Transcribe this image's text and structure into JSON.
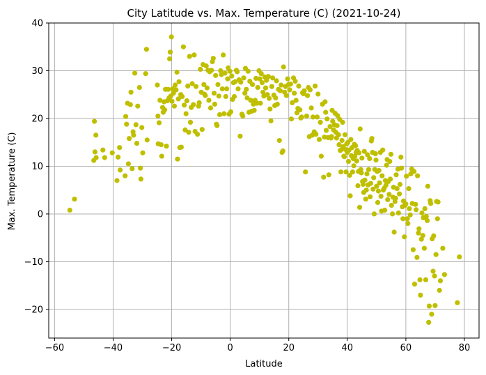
{
  "chart_data": {
    "type": "scatter",
    "title": "City Latitude vs. Max. Temperature (C) (2021-10-24)",
    "xlabel": "Latitude",
    "ylabel": "Max. Temperature (C)",
    "xlim": [
      -62,
      85
    ],
    "ylim": [
      -26,
      40
    ],
    "xticks": [
      -60,
      -40,
      -20,
      0,
      20,
      40,
      60,
      80
    ],
    "yticks": [
      -20,
      -10,
      0,
      10,
      20,
      30,
      40
    ],
    "grid": true,
    "marker_color": "#bfbf00",
    "grid_color": "#b0b0b0",
    "points": [
      [
        -54.8,
        0.8
      ],
      [
        -53.2,
        3.1
      ],
      [
        -46.6,
        11.2
      ],
      [
        -46.4,
        19.4
      ],
      [
        -46.2,
        13.0
      ],
      [
        -45.9,
        16.5
      ],
      [
        -45.8,
        11.8
      ],
      [
        -43.5,
        13.4
      ],
      [
        -42.9,
        11.8
      ],
      [
        -40.3,
        12.8
      ],
      [
        -38.7,
        7.0
      ],
      [
        -38.3,
        11.9
      ],
      [
        -37.8,
        13.9
      ],
      [
        -37.6,
        9.2
      ],
      [
        -35.9,
        8.0
      ],
      [
        -35.7,
        20.4
      ],
      [
        -35.4,
        18.8
      ],
      [
        -35.1,
        23.2
      ],
      [
        -34.8,
        10.5
      ],
      [
        -34.5,
        15.8
      ],
      [
        -34.1,
        22.9
      ],
      [
        -33.9,
        25.5
      ],
      [
        -33.5,
        9.5
      ],
      [
        -33.2,
        17.2
      ],
      [
        -33.0,
        16.5
      ],
      [
        -32.6,
        29.5
      ],
      [
        -32.2,
        18.7
      ],
      [
        -31.9,
        14.8
      ],
      [
        -31.6,
        22.6
      ],
      [
        -31.0,
        26.5
      ],
      [
        -30.7,
        9.6
      ],
      [
        -30.5,
        7.3
      ],
      [
        -30.2,
        18.1
      ],
      [
        -29.9,
        12.8
      ],
      [
        -28.9,
        29.4
      ],
      [
        -28.6,
        34.5
      ],
      [
        -28.4,
        15.5
      ],
      [
        -24.9,
        27.0
      ],
      [
        -24.7,
        20.5
      ],
      [
        -24.6,
        14.7
      ],
      [
        -24.3,
        19.1
      ],
      [
        -24.0,
        23.8
      ],
      [
        -23.6,
        14.5
      ],
      [
        -23.4,
        12.1
      ],
      [
        -23.1,
        22.3
      ],
      [
        -22.9,
        21.3
      ],
      [
        -22.6,
        23.5
      ],
      [
        -22.4,
        21.8
      ],
      [
        -22.1,
        26.1
      ],
      [
        -21.8,
        14.2
      ],
      [
        -21.5,
        23.7
      ],
      [
        -21.2,
        26.1
      ],
      [
        -20.9,
        24.3
      ],
      [
        -20.7,
        32.5
      ],
      [
        -20.5,
        33.9
      ],
      [
        -20.3,
        24.7
      ],
      [
        -20.1,
        37.1
      ],
      [
        -19.9,
        23.6
      ],
      [
        -19.7,
        26.2
      ],
      [
        -19.4,
        25.3
      ],
      [
        -19.1,
        22.6
      ],
      [
        -18.8,
        27.0
      ],
      [
        -18.5,
        26.0
      ],
      [
        -18.2,
        29.7
      ],
      [
        -18.0,
        11.5
      ],
      [
        -17.7,
        24.1
      ],
      [
        -17.5,
        27.7
      ],
      [
        -17.2,
        13.9
      ],
      [
        -16.9,
        25.0
      ],
      [
        -16.7,
        14.0
      ],
      [
        -16.4,
        24.6
      ],
      [
        -16.0,
        35.0
      ],
      [
        -15.7,
        22.8
      ],
      [
        -15.4,
        17.6
      ],
      [
        -15.1,
        21.0
      ],
      [
        -14.8,
        23.7
      ],
      [
        -14.5,
        26.8
      ],
      [
        -14.2,
        17.1
      ],
      [
        -13.9,
        33.0
      ],
      [
        -13.6,
        19.2
      ],
      [
        -13.3,
        22.3
      ],
      [
        -13.0,
        27.3
      ],
      [
        -12.6,
        22.9
      ],
      [
        -12.3,
        33.3
      ],
      [
        -12.0,
        17.3
      ],
      [
        -11.7,
        26.7
      ],
      [
        -11.2,
        16.7
      ],
      [
        -10.8,
        22.6
      ],
      [
        -10.6,
        23.3
      ],
      [
        -10.2,
        30.3
      ],
      [
        -9.9,
        25.5
      ],
      [
        -9.6,
        17.7
      ],
      [
        -9.3,
        31.3
      ],
      [
        -9.0,
        27.1
      ],
      [
        -8.8,
        25.1
      ],
      [
        -8.5,
        24.8
      ],
      [
        -8.2,
        31.0
      ],
      [
        -7.9,
        26.4
      ],
      [
        -7.6,
        30.1
      ],
      [
        -7.3,
        23.8
      ],
      [
        -7.0,
        29.8
      ],
      [
        -6.7,
        22.2
      ],
      [
        -6.4,
        30.1
      ],
      [
        -6.1,
        31.9
      ],
      [
        -5.8,
        32.6
      ],
      [
        -5.5,
        25.3
      ],
      [
        -5.3,
        23.0
      ],
      [
        -5.0,
        29.0
      ],
      [
        -4.7,
        18.8
      ],
      [
        -4.5,
        18.5
      ],
      [
        -4.2,
        27.1
      ],
      [
        -3.9,
        24.7
      ],
      [
        -3.6,
        20.8
      ],
      [
        -3.3,
        30.0
      ],
      [
        -3.0,
        29.2
      ],
      [
        -2.7,
        26.2
      ],
      [
        -2.4,
        33.3
      ],
      [
        -2.1,
        21.0
      ],
      [
        -1.8,
        29.5
      ],
      [
        -1.5,
        24.6
      ],
      [
        -1.2,
        26.2
      ],
      [
        -0.9,
        28.3
      ],
      [
        -0.7,
        30.6
      ],
      [
        -0.4,
        20.9
      ],
      [
        -0.1,
        29.9
      ],
      [
        0.2,
        21.4
      ],
      [
        0.5,
        28.9
      ],
      [
        0.8,
        24.0
      ],
      [
        1.1,
        27.5
      ],
      [
        1.4,
        24.6
      ],
      [
        1.7,
        27.7
      ],
      [
        2.1,
        30.1
      ],
      [
        2.4,
        29.8
      ],
      [
        2.7,
        26.2
      ],
      [
        3.0,
        28.1
      ],
      [
        3.4,
        16.3
      ],
      [
        3.6,
        27.6
      ],
      [
        4.0,
        20.9
      ],
      [
        4.3,
        20.5
      ],
      [
        4.6,
        28.5
      ],
      [
        5.0,
        25.3
      ],
      [
        5.2,
        30.5
      ],
      [
        5.5,
        26.1
      ],
      [
        5.8,
        24.3
      ],
      [
        6.1,
        29.9
      ],
      [
        6.4,
        21.3
      ],
      [
        6.7,
        27.8
      ],
      [
        7.0,
        23.8
      ],
      [
        7.3,
        21.5
      ],
      [
        7.6,
        27.1
      ],
      [
        7.9,
        23.0
      ],
      [
        8.2,
        21.7
      ],
      [
        8.5,
        23.8
      ],
      [
        8.8,
        28.4
      ],
      [
        9.1,
        23.2
      ],
      [
        9.4,
        26.5
      ],
      [
        9.8,
        30.0
      ],
      [
        10.1,
        28.3
      ],
      [
        10.3,
        23.2
      ],
      [
        10.6,
        29.4
      ],
      [
        10.9,
        27.5
      ],
      [
        11.2,
        25.5
      ],
      [
        11.5,
        24.7
      ],
      [
        11.8,
        28.7
      ],
      [
        12.1,
        26.4
      ],
      [
        12.4,
        28.0
      ],
      [
        12.7,
        25.0
      ],
      [
        13.0,
        28.8
      ],
      [
        13.3,
        24.2
      ],
      [
        13.6,
        22.0
      ],
      [
        13.9,
        19.5
      ],
      [
        14.2,
        26.7
      ],
      [
        14.5,
        28.5
      ],
      [
        14.9,
        24.9
      ],
      [
        15.2,
        22.7
      ],
      [
        15.5,
        24.3
      ],
      [
        15.8,
        27.9
      ],
      [
        16.1,
        23.0
      ],
      [
        16.5,
        26.1
      ],
      [
        16.8,
        15.4
      ],
      [
        17.1,
        25.8
      ],
      [
        17.4,
        27.0
      ],
      [
        17.7,
        12.9
      ],
      [
        18.0,
        13.2
      ],
      [
        18.2,
        30.8
      ],
      [
        18.6,
        25.5
      ],
      [
        18.9,
        26.7
      ],
      [
        19.2,
        24.8
      ],
      [
        19.6,
        28.3
      ],
      [
        19.9,
        27.1
      ],
      [
        20.3,
        26.0
      ],
      [
        20.6,
        27.2
      ],
      [
        20.9,
        19.9
      ],
      [
        21.2,
        23.3
      ],
      [
        21.6,
        28.5
      ],
      [
        21.9,
        25.3
      ],
      [
        22.2,
        27.8
      ],
      [
        22.5,
        23.8
      ],
      [
        22.8,
        21.2
      ],
      [
        23.1,
        22.1
      ],
      [
        23.4,
        26.8
      ],
      [
        23.8,
        21.8
      ],
      [
        24.1,
        20.1
      ],
      [
        24.4,
        20.3
      ],
      [
        24.7,
        25.4
      ],
      [
        25.0,
        25.2
      ],
      [
        25.3,
        25.8
      ],
      [
        25.7,
        8.8
      ],
      [
        26.1,
        20.5
      ],
      [
        26.4,
        24.8
      ],
      [
        26.7,
        26.5
      ],
      [
        27.0,
        16.2
      ],
      [
        27.3,
        26.0
      ],
      [
        27.7,
        22.2
      ],
      [
        28.0,
        16.5
      ],
      [
        28.3,
        20.3
      ],
      [
        28.7,
        17.2
      ],
      [
        29.0,
        26.8
      ],
      [
        29.3,
        16.7
      ],
      [
        29.7,
        20.3
      ],
      [
        30.0,
        25.1
      ],
      [
        30.4,
        15.6
      ],
      [
        30.8,
        19.2
      ],
      [
        31.1,
        12.1
      ],
      [
        31.5,
        23.0
      ],
      [
        31.9,
        7.7
      ],
      [
        32.2,
        16.1
      ],
      [
        32.4,
        23.5
      ],
      [
        32.6,
        21.3
      ],
      [
        32.8,
        17.5
      ],
      [
        33.1,
        19.9
      ],
      [
        33.4,
        16.0
      ],
      [
        33.7,
        8.2
      ],
      [
        34.1,
        18.3
      ],
      [
        34.4,
        15.9
      ],
      [
        34.6,
        16.2
      ],
      [
        34.8,
        21.7
      ],
      [
        35.0,
        19.4
      ],
      [
        35.3,
        17.6
      ],
      [
        35.6,
        18.7
      ],
      [
        35.8,
        21.1
      ],
      [
        36.1,
        17.1
      ],
      [
        36.3,
        15.9
      ],
      [
        36.5,
        18.5
      ],
      [
        36.7,
        20.6
      ],
      [
        37.0,
        16.6
      ],
      [
        37.2,
        14.5
      ],
      [
        37.4,
        19.8
      ],
      [
        37.6,
        13.3
      ],
      [
        37.8,
        8.8
      ],
      [
        38.0,
        13.5
      ],
      [
        38.2,
        15.4
      ],
      [
        38.4,
        19.2
      ],
      [
        38.6,
        14.1
      ],
      [
        38.8,
        12.1
      ],
      [
        39.0,
        12.0
      ],
      [
        39.2,
        16.6
      ],
      [
        39.4,
        13.5
      ],
      [
        39.6,
        8.8
      ],
      [
        39.8,
        14.7
      ],
      [
        40.0,
        12.9
      ],
      [
        40.2,
        15.0
      ],
      [
        40.4,
        11.0
      ],
      [
        40.6,
        13.4
      ],
      [
        40.8,
        8.1
      ],
      [
        41.0,
        3.8
      ],
      [
        41.2,
        15.6
      ],
      [
        41.4,
        12.2
      ],
      [
        41.6,
        13.9
      ],
      [
        41.8,
        8.8
      ],
      [
        42.0,
        11.6
      ],
      [
        42.2,
        10.1
      ],
      [
        42.4,
        14.6
      ],
      [
        42.6,
        12.1
      ],
      [
        42.8,
        14.3
      ],
      [
        43.0,
        12.9
      ],
      [
        43.2,
        11.1
      ],
      [
        43.4,
        13.3
      ],
      [
        43.6,
        5.9
      ],
      [
        43.8,
        8.9
      ],
      [
        44.0,
        12.8
      ],
      [
        44.2,
        1.4
      ],
      [
        44.4,
        17.8
      ],
      [
        44.6,
        9.3
      ],
      [
        44.8,
        8.6
      ],
      [
        45.0,
        11.7
      ],
      [
        45.2,
        6.8
      ],
      [
        45.4,
        6.2
      ],
      [
        45.6,
        4.5
      ],
      [
        45.8,
        13.1
      ],
      [
        46.0,
        7.1
      ],
      [
        46.3,
        3.1
      ],
      [
        46.5,
        5.0
      ],
      [
        46.7,
        8.4
      ],
      [
        46.9,
        12.4
      ],
      [
        47.1,
        6.1
      ],
      [
        47.3,
        9.3
      ],
      [
        47.6,
        11.6
      ],
      [
        47.8,
        3.6
      ],
      [
        48.0,
        6.4
      ],
      [
        48.2,
        15.3
      ],
      [
        48.4,
        15.8
      ],
      [
        48.6,
        12.9
      ],
      [
        48.8,
        5.2
      ],
      [
        49.0,
        7.6
      ],
      [
        49.2,
        0.0
      ],
      [
        49.4,
        9.3
      ],
      [
        49.6,
        12.6
      ],
      [
        49.8,
        11.3
      ],
      [
        50.0,
        5.8
      ],
      [
        50.2,
        8.9
      ],
      [
        50.4,
        2.4
      ],
      [
        50.6,
        4.8
      ],
      [
        50.8,
        9.1
      ],
      [
        51.0,
        6.5
      ],
      [
        51.3,
        12.9
      ],
      [
        51.5,
        3.7
      ],
      [
        51.7,
        0.6
      ],
      [
        51.9,
        8.0
      ],
      [
        52.1,
        13.4
      ],
      [
        52.3,
        5.0
      ],
      [
        52.6,
        5.4
      ],
      [
        52.8,
        0.8
      ],
      [
        53.0,
        7.0
      ],
      [
        53.2,
        6.0
      ],
      [
        53.4,
        10.2
      ],
      [
        53.6,
        11.4
      ],
      [
        53.8,
        3.0
      ],
      [
        54.0,
        6.8
      ],
      [
        54.3,
        4.1
      ],
      [
        54.5,
        11.0
      ],
      [
        54.7,
        7.3
      ],
      [
        54.9,
        12.5
      ],
      [
        55.1,
        1.8
      ],
      [
        55.4,
        0.0
      ],
      [
        55.6,
        3.5
      ],
      [
        55.8,
        5.6
      ],
      [
        56.0,
        -3.8
      ],
      [
        56.3,
        2.6
      ],
      [
        56.5,
        3.3
      ],
      [
        56.7,
        8.2
      ],
      [
        57.0,
        5.3
      ],
      [
        57.3,
        9.4
      ],
      [
        57.5,
        0.2
      ],
      [
        57.8,
        4.2
      ],
      [
        58.0,
        6.2
      ],
      [
        58.3,
        11.9
      ],
      [
        58.5,
        9.6
      ],
      [
        58.8,
        1.5
      ],
      [
        59.0,
        -1.0
      ],
      [
        59.2,
        2.7
      ],
      [
        59.5,
        -4.8
      ],
      [
        59.7,
        1.8
      ],
      [
        60.0,
        2.1
      ],
      [
        60.2,
        7.9
      ],
      [
        60.5,
        -1.0
      ],
      [
        60.7,
        -2.0
      ],
      [
        61.0,
        5.3
      ],
      [
        61.2,
        1.1
      ],
      [
        61.5,
        -0.2
      ],
      [
        61.7,
        8.4
      ],
      [
        62.0,
        9.4
      ],
      [
        62.2,
        2.2
      ],
      [
        62.5,
        -7.5
      ],
      [
        62.8,
        8.9
      ],
      [
        63.0,
        -14.7
      ],
      [
        63.3,
        2.0
      ],
      [
        63.5,
        0.9
      ],
      [
        63.8,
        -9.1
      ],
      [
        64.0,
        8.0
      ],
      [
        64.3,
        -4.0
      ],
      [
        64.5,
        -3.1
      ],
      [
        64.8,
        -13.8
      ],
      [
        65.0,
        -17.0
      ],
      [
        65.3,
        -5.3
      ],
      [
        65.5,
        0.2
      ],
      [
        65.8,
        -4.5
      ],
      [
        66.0,
        -0.8
      ],
      [
        66.3,
        -7.2
      ],
      [
        66.5,
        1.1
      ],
      [
        66.8,
        -13.8
      ],
      [
        67.0,
        -0.5
      ],
      [
        67.3,
        -1.4
      ],
      [
        67.5,
        5.8
      ],
      [
        67.8,
        -22.7
      ],
      [
        68.0,
        -19.3
      ],
      [
        68.3,
        2.8
      ],
      [
        68.5,
        2.2
      ],
      [
        68.8,
        -21.0
      ],
      [
        69.0,
        -5.2
      ],
      [
        69.3,
        -12.0
      ],
      [
        69.5,
        -4.6
      ],
      [
        69.8,
        -13.0
      ],
      [
        70.0,
        -19.2
      ],
      [
        70.3,
        -8.5
      ],
      [
        70.5,
        2.6
      ],
      [
        70.8,
        -1.0
      ],
      [
        71.0,
        2.5
      ],
      [
        71.5,
        -16.0
      ],
      [
        71.8,
        -14.0
      ],
      [
        72.6,
        -7.2
      ],
      [
        73.2,
        -12.7
      ],
      [
        77.6,
        -18.6
      ],
      [
        78.3,
        -9.0
      ]
    ]
  }
}
